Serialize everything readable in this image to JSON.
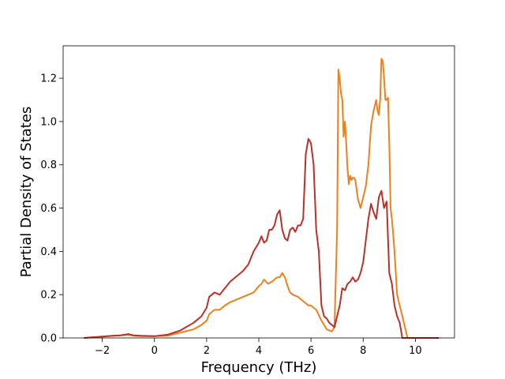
{
  "chart_data": {
    "type": "line",
    "title": "",
    "xlabel": "Frequency (THz)",
    "ylabel": "Partial Density of States",
    "xlim": [
      -3.5,
      11.5
    ],
    "ylim": [
      0.0,
      1.35
    ],
    "xticks": [
      -2,
      0,
      2,
      4,
      6,
      8,
      10
    ],
    "yticks": [
      0.0,
      0.2,
      0.4,
      0.6,
      0.8,
      1.0,
      1.2
    ],
    "xtick_labels": [
      "−2",
      "0",
      "2",
      "4",
      "6",
      "8",
      "10"
    ],
    "ytick_labels": [
      "0.0",
      "0.2",
      "0.4",
      "0.6",
      "0.8",
      "1.0",
      "1.2"
    ],
    "grid": false,
    "legend": false,
    "series": [
      {
        "color": "#f07f1d",
        "x": [
          -2.7,
          -1.6,
          -1.3,
          -1.0,
          -0.8,
          -0.5,
          0.0,
          0.5,
          1.0,
          1.5,
          1.8,
          2.0,
          2.1,
          2.2,
          2.3,
          2.5,
          2.7,
          2.9,
          3.0,
          3.2,
          3.4,
          3.6,
          3.8,
          4.0,
          4.1,
          4.2,
          4.35,
          4.5,
          4.7,
          4.8,
          4.9,
          5.0,
          5.1,
          5.2,
          5.3,
          5.5,
          5.7,
          5.9,
          6.0,
          6.2,
          6.4,
          6.6,
          6.8,
          6.9,
          7.0,
          7.05,
          7.1,
          7.15,
          7.2,
          7.25,
          7.3,
          7.35,
          7.4,
          7.45,
          7.5,
          7.55,
          7.6,
          7.65,
          7.7,
          7.8,
          7.9,
          8.0,
          8.1,
          8.2,
          8.3,
          8.4,
          8.5,
          8.55,
          8.6,
          8.65,
          8.7,
          8.75,
          8.8,
          8.85,
          8.9,
          8.95,
          9.0,
          9.05,
          9.1,
          9.15,
          9.2,
          9.3,
          9.4,
          9.5,
          9.6,
          9.7,
          9.8,
          10.0,
          10.4,
          10.9
        ],
        "y": [
          0.0,
          0.01,
          0.012,
          0.015,
          0.01,
          0.008,
          0.008,
          0.01,
          0.025,
          0.04,
          0.06,
          0.08,
          0.11,
          0.12,
          0.13,
          0.13,
          0.15,
          0.165,
          0.17,
          0.18,
          0.19,
          0.2,
          0.21,
          0.24,
          0.25,
          0.27,
          0.25,
          0.26,
          0.28,
          0.28,
          0.3,
          0.28,
          0.24,
          0.21,
          0.2,
          0.19,
          0.17,
          0.15,
          0.15,
          0.13,
          0.08,
          0.04,
          0.03,
          0.05,
          0.5,
          1.24,
          1.2,
          1.13,
          1.1,
          0.93,
          1.0,
          0.9,
          0.78,
          0.71,
          0.75,
          0.73,
          0.74,
          0.74,
          0.73,
          0.64,
          0.6,
          0.65,
          0.7,
          0.8,
          0.98,
          1.05,
          1.1,
          1.05,
          1.03,
          1.1,
          1.29,
          1.28,
          1.2,
          1.1,
          1.1,
          1.11,
          0.9,
          0.6,
          0.55,
          0.48,
          0.4,
          0.2,
          0.15,
          0.1,
          0.05,
          0.0,
          0.0,
          0.0,
          0.0,
          0.0
        ]
      },
      {
        "color": "#b8312a",
        "x": [
          -2.7,
          -1.6,
          -1.3,
          -1.0,
          -0.8,
          -0.5,
          0.0,
          0.5,
          1.0,
          1.5,
          1.8,
          2.0,
          2.1,
          2.2,
          2.3,
          2.5,
          2.7,
          2.9,
          3.0,
          3.2,
          3.4,
          3.6,
          3.8,
          4.0,
          4.1,
          4.2,
          4.3,
          4.4,
          4.5,
          4.6,
          4.7,
          4.8,
          4.9,
          5.0,
          5.1,
          5.2,
          5.3,
          5.4,
          5.5,
          5.6,
          5.7,
          5.8,
          5.9,
          6.0,
          6.1,
          6.2,
          6.3,
          6.4,
          6.5,
          6.6,
          6.7,
          6.8,
          6.9,
          7.0,
          7.1,
          7.2,
          7.3,
          7.4,
          7.5,
          7.6,
          7.7,
          7.8,
          7.9,
          8.0,
          8.1,
          8.2,
          8.3,
          8.4,
          8.5,
          8.6,
          8.7,
          8.8,
          8.9,
          9.0,
          9.1,
          9.2,
          9.3,
          9.4,
          9.5,
          9.6,
          9.7,
          9.8,
          10.0,
          10.4,
          10.9
        ],
        "y": [
          0.0,
          0.01,
          0.012,
          0.018,
          0.012,
          0.01,
          0.008,
          0.015,
          0.035,
          0.07,
          0.1,
          0.14,
          0.19,
          0.2,
          0.21,
          0.2,
          0.23,
          0.26,
          0.27,
          0.29,
          0.31,
          0.34,
          0.4,
          0.44,
          0.47,
          0.44,
          0.45,
          0.5,
          0.5,
          0.52,
          0.57,
          0.59,
          0.5,
          0.46,
          0.45,
          0.5,
          0.51,
          0.49,
          0.52,
          0.52,
          0.55,
          0.85,
          0.92,
          0.9,
          0.8,
          0.5,
          0.4,
          0.15,
          0.1,
          0.09,
          0.07,
          0.06,
          0.05,
          0.1,
          0.15,
          0.23,
          0.22,
          0.25,
          0.26,
          0.28,
          0.26,
          0.27,
          0.3,
          0.35,
          0.45,
          0.55,
          0.62,
          0.58,
          0.55,
          0.65,
          0.68,
          0.6,
          0.63,
          0.3,
          0.25,
          0.15,
          0.1,
          0.07,
          0.0,
          0.0,
          0.0,
          0.0,
          0.0,
          0.0,
          0.0
        ]
      }
    ]
  }
}
